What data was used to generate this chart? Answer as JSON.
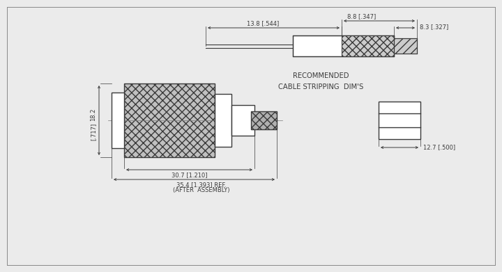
{
  "bg_color": "#ebebeb",
  "line_color": "#3a3a3a",
  "title": "RECOMMENDED\nCABLE STRIPPING  DIM'S",
  "dim_13_8": "13.8 [.544]",
  "dim_8_8": "8.8 [.347]",
  "dim_8_3": "8.3 [.327]",
  "dim_18_2": "18.2 [.717]",
  "dim_30_7": "30.7 [1.210]",
  "dim_35_4": "35.4 [1.393] REF.",
  "dim_35_4b": "(AFTER  ASSEMBLY)",
  "dim_12_7": "12.7 [.500]"
}
